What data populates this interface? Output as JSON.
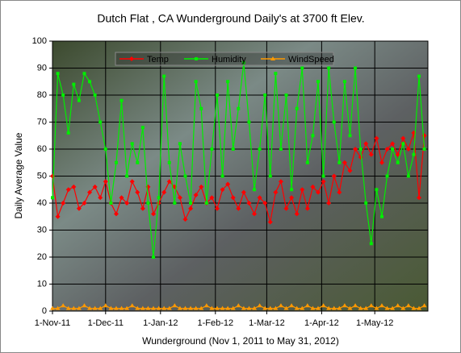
{
  "chart_data": {
    "type": "line",
    "title": "Dutch Flat , CA Wunderground Daily's at 3700 ft Elev.",
    "xlabel": "Wunderground (Nov 1, 2011 to May 31, 2012)",
    "ylabel": "Daily Average Value",
    "x": [
      "2011-11-01",
      "2011-11-04",
      "2011-11-07",
      "2011-11-10",
      "2011-11-13",
      "2011-11-16",
      "2011-11-19",
      "2011-11-22",
      "2011-11-25",
      "2011-11-28",
      "2011-12-01",
      "2011-12-04",
      "2011-12-07",
      "2011-12-10",
      "2011-12-13",
      "2011-12-16",
      "2011-12-19",
      "2011-12-22",
      "2011-12-25",
      "2011-12-28",
      "2011-12-31",
      "2012-01-03",
      "2012-01-06",
      "2012-01-09",
      "2012-01-12",
      "2012-01-15",
      "2012-01-18",
      "2012-01-21",
      "2012-01-24",
      "2012-01-27",
      "2012-01-30",
      "2012-02-02",
      "2012-02-05",
      "2012-02-08",
      "2012-02-11",
      "2012-02-14",
      "2012-02-17",
      "2012-02-20",
      "2012-02-23",
      "2012-02-26",
      "2012-02-29",
      "2012-03-03",
      "2012-03-06",
      "2012-03-09",
      "2012-03-12",
      "2012-03-15",
      "2012-03-18",
      "2012-03-21",
      "2012-03-24",
      "2012-03-27",
      "2012-03-30",
      "2012-04-02",
      "2012-04-05",
      "2012-04-08",
      "2012-04-11",
      "2012-04-14",
      "2012-04-17",
      "2012-04-20",
      "2012-04-23",
      "2012-04-26",
      "2012-04-29",
      "2012-05-02",
      "2012-05-05",
      "2012-05-08",
      "2012-05-11",
      "2012-05-14",
      "2012-05-17",
      "2012-05-20",
      "2012-05-23",
      "2012-05-26",
      "2012-05-29"
    ],
    "series": [
      {
        "name": "Temp",
        "color": "#ff0000",
        "marker": "diamond",
        "values": [
          50,
          35,
          40,
          45,
          46,
          38,
          40,
          44,
          46,
          42,
          48,
          40,
          36,
          42,
          40,
          48,
          44,
          38,
          46,
          36,
          40,
          44,
          48,
          46,
          42,
          34,
          38,
          43,
          46,
          40,
          42,
          38,
          45,
          47,
          42,
          38,
          44,
          40,
          36,
          42,
          40,
          33,
          44,
          48,
          38,
          42,
          36,
          45,
          38,
          46,
          44,
          48,
          40,
          50,
          44,
          55,
          52,
          60,
          57,
          62,
          58,
          64,
          55,
          60,
          62,
          58,
          64,
          60,
          66,
          42,
          65
        ]
      },
      {
        "name": "Humidity",
        "color": "#00ee00",
        "marker": "square",
        "values": [
          42,
          88,
          80,
          66,
          84,
          78,
          88,
          85,
          80,
          70,
          60,
          40,
          55,
          78,
          50,
          62,
          55,
          68,
          40,
          20,
          42,
          87,
          55,
          40,
          62,
          50,
          40,
          85,
          75,
          40,
          60,
          80,
          50,
          85,
          60,
          75,
          92,
          70,
          45,
          60,
          80,
          50,
          88,
          60,
          80,
          45,
          75,
          90,
          55,
          65,
          85,
          50,
          90,
          70,
          55,
          85,
          65,
          90,
          60,
          40,
          25,
          45,
          35,
          50,
          60,
          55,
          62,
          50,
          58,
          87,
          60
        ]
      },
      {
        "name": "WindSpeed",
        "color": "#ff9900",
        "marker": "triangle",
        "values": [
          1,
          1,
          2,
          1,
          1,
          1,
          2,
          1,
          1,
          1,
          2,
          1,
          1,
          1,
          1,
          2,
          1,
          1,
          1,
          1,
          1,
          1,
          1,
          2,
          1,
          1,
          1,
          1,
          1,
          2,
          1,
          1,
          1,
          1,
          1,
          2,
          1,
          1,
          1,
          2,
          1,
          1,
          1,
          2,
          1,
          2,
          1,
          1,
          2,
          1,
          1,
          2,
          1,
          1,
          1,
          2,
          1,
          2,
          1,
          1,
          2,
          1,
          2,
          1,
          1,
          2,
          1,
          2,
          1,
          1,
          2
        ]
      }
    ],
    "xlim": [
      "2011-11-01",
      "2012-05-31"
    ],
    "xticks": [
      {
        "value": "2011-11-01",
        "label": "1-Nov-11"
      },
      {
        "value": "2011-12-01",
        "label": "1-Dec-11"
      },
      {
        "value": "2012-01-01",
        "label": "1-Jan-12"
      },
      {
        "value": "2012-02-01",
        "label": "1-Feb-12"
      },
      {
        "value": "2012-03-01",
        "label": "1-Mar-12"
      },
      {
        "value": "2012-04-01",
        "label": "1-Apr-12"
      },
      {
        "value": "2012-05-01",
        "label": "1-May-12"
      }
    ],
    "ylim": [
      0,
      100
    ],
    "yticks": [
      0,
      10,
      20,
      30,
      40,
      50,
      60,
      70,
      80,
      90,
      100
    ],
    "grid": true,
    "legend": "top"
  }
}
